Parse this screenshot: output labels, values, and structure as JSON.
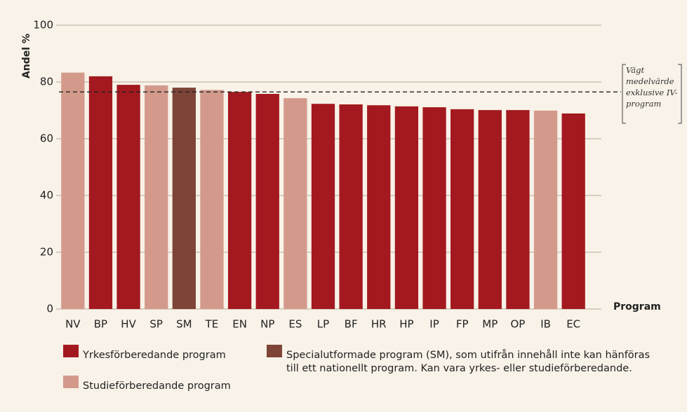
{
  "chart_data": {
    "type": "bar",
    "y_label": "Andel %",
    "x_label": "Program",
    "categories": [
      "NV",
      "BP",
      "HV",
      "SP",
      "SM",
      "TE",
      "EN",
      "NP",
      "ES",
      "LP",
      "BF",
      "HR",
      "HP",
      "IP",
      "FP",
      "MP",
      "OP",
      "IB",
      "EC"
    ],
    "values": [
      83.3,
      82,
      79,
      78.8,
      78,
      77.2,
      76.5,
      75.8,
      74.3,
      72.3,
      72.1,
      71.8,
      71.4,
      71.1,
      70.4,
      70.1,
      70.1,
      69.9,
      68.9
    ],
    "colors": [
      "#d39a8b",
      "#a3191f",
      "#a3191f",
      "#d39a8b",
      "#7d4437",
      "#d39a8b",
      "#a3191f",
      "#a3191f",
      "#d39a8b",
      "#a3191f",
      "#a3191f",
      "#a3191f",
      "#a3191f",
      "#a3191f",
      "#a3191f",
      "#a3191f",
      "#a3191f",
      "#d39a8b",
      "#a3191f"
    ],
    "ylim": [
      0,
      100
    ],
    "yticks": [
      0,
      20,
      40,
      60,
      80,
      100
    ],
    "grid": true,
    "reference_line": {
      "value": 76.5,
      "label": "Vägt medelvärde exklusive IV-program"
    },
    "legend": [
      {
        "name": "Yrkesförberedande program",
        "color": "#a3191f"
      },
      {
        "name": "Studieförberedande program",
        "color": "#d39a8b"
      },
      {
        "name": "Specialutformade program (SM), som utifrån innehåll inte kan hänföras till ett nationellt program. Kan vara yrkes- eller studieförberedande.",
        "color": "#7d4437"
      }
    ]
  }
}
